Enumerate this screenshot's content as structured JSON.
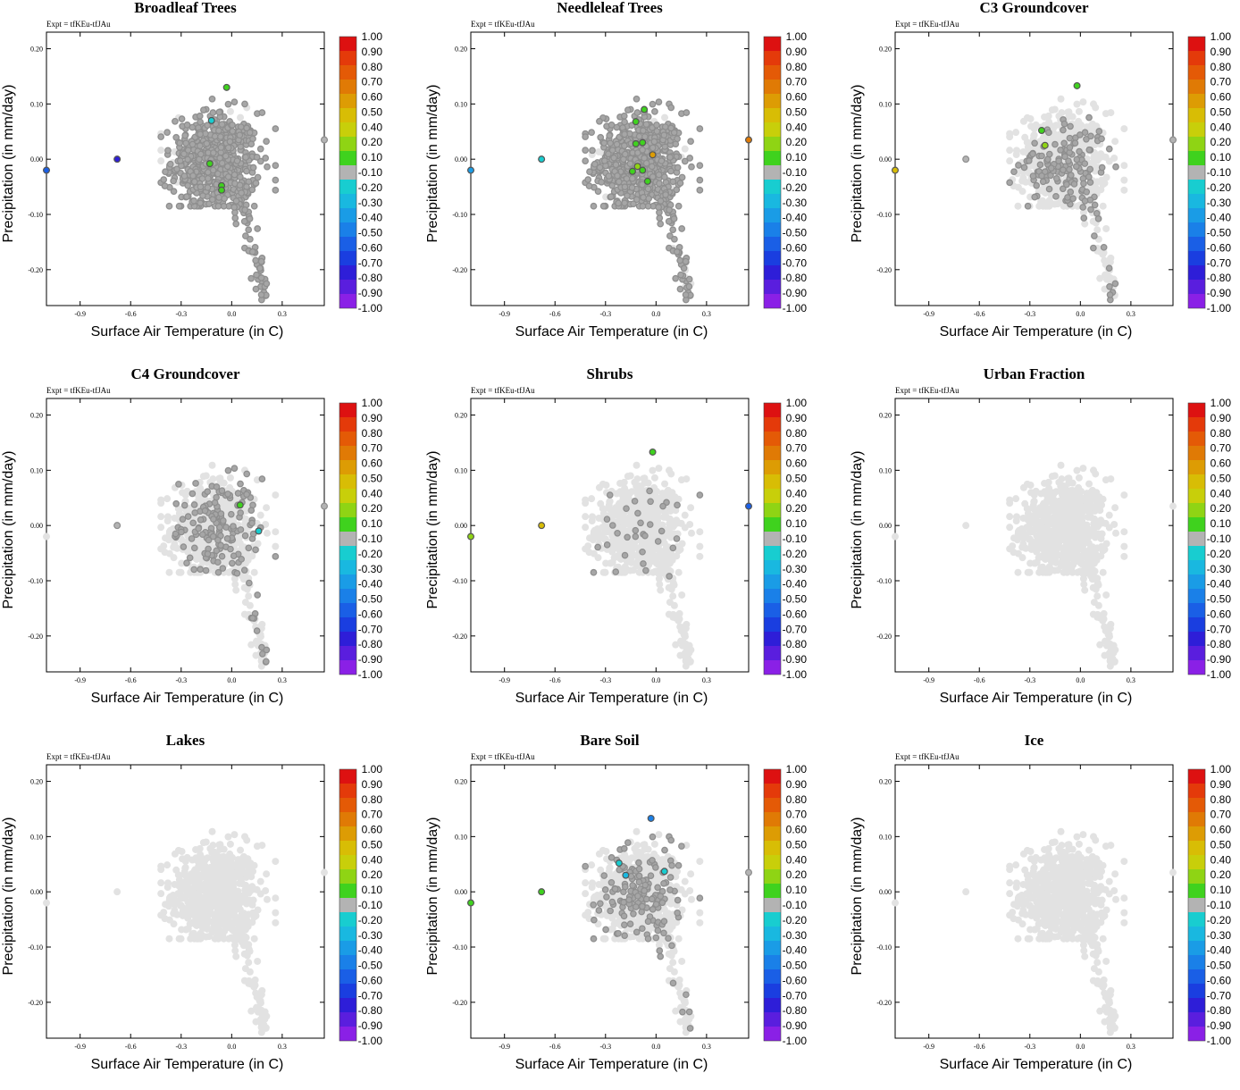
{
  "figure": {
    "xlabel": "Surface Air Temperature (in C)",
    "ylabel": "Precipitation (in mm/day)",
    "expt": "Expt = tfKEu-tfJAu",
    "colorbar": {
      "labels": [
        "1.00",
        "0.90",
        "0.80",
        "0.70",
        "0.60",
        "0.50",
        "0.40",
        "0.20",
        "0.10",
        "-0.10",
        "-0.20",
        "-0.30",
        "-0.40",
        "-0.50",
        "-0.60",
        "-0.70",
        "-0.80",
        "-0.90",
        "-1.00"
      ],
      "colors": [
        "#dd1111",
        "#e43a0a",
        "#e45a06",
        "#e07a05",
        "#dd9c04",
        "#d8bd05",
        "#c8cf0a",
        "#8fd414",
        "#3fd21e",
        "#b3b3b3",
        "#18cdd0",
        "#19b8e0",
        "#1a9ce6",
        "#1a80e8",
        "#1a5fe6",
        "#1a3ee0",
        "#2e1ed8",
        "#5a1ede",
        "#8a20e6"
      ]
    }
  },
  "chart_data": [
    {
      "type": "scatter",
      "title": "Broadleaf Trees",
      "xlim": [
        -1.1,
        0.55
      ],
      "ylim": [
        -0.265,
        0.23
      ],
      "xticks": [
        "-0.9",
        "-0.6",
        "-0.3",
        "0.0",
        "0.3"
      ],
      "yticks": [
        "0.20",
        "0.10",
        "0.00",
        "-0.10",
        "-0.20"
      ],
      "coverage": "dense",
      "highlights": [
        {
          "x": -0.68,
          "y": 0.0,
          "c": "#2e1ed8"
        },
        {
          "x": -1.1,
          "y": -0.02,
          "c": "#1a5fe6"
        },
        {
          "x": -0.03,
          "y": 0.13,
          "c": "#3fd21e"
        },
        {
          "x": -0.13,
          "y": -0.008,
          "c": "#3fd21e"
        },
        {
          "x": -0.06,
          "y": -0.048,
          "c": "#3fd21e"
        },
        {
          "x": -0.06,
          "y": -0.056,
          "c": "#3fd21e"
        },
        {
          "x": -0.12,
          "y": 0.07,
          "c": "#18cdd0"
        },
        {
          "x": 0.55,
          "y": 0.035,
          "c": "#b3b3b3"
        }
      ]
    },
    {
      "type": "scatter",
      "title": "Needleleaf Trees",
      "xlim": [
        -1.1,
        0.55
      ],
      "ylim": [
        -0.265,
        0.23
      ],
      "xticks": [
        "-0.9",
        "-0.6",
        "-0.3",
        "0.0",
        "0.3"
      ],
      "yticks": [
        "0.20",
        "0.10",
        "0.00",
        "-0.10",
        "-0.20"
      ],
      "coverage": "dense",
      "highlights": [
        {
          "x": -0.68,
          "y": 0.0,
          "c": "#18cdd0"
        },
        {
          "x": -1.1,
          "y": -0.02,
          "c": "#1a9ce6"
        },
        {
          "x": 0.55,
          "y": 0.035,
          "c": "#e07a05"
        },
        {
          "x": -0.07,
          "y": 0.09,
          "c": "#3fd21e"
        },
        {
          "x": -0.12,
          "y": 0.068,
          "c": "#3fd21e"
        },
        {
          "x": -0.12,
          "y": 0.028,
          "c": "#3fd21e"
        },
        {
          "x": -0.08,
          "y": 0.03,
          "c": "#3fd21e"
        },
        {
          "x": -0.02,
          "y": 0.008,
          "c": "#dd9c04"
        },
        {
          "x": -0.11,
          "y": -0.013,
          "c": "#8fd414"
        },
        {
          "x": -0.14,
          "y": -0.022,
          "c": "#3fd21e"
        },
        {
          "x": -0.05,
          "y": -0.04,
          "c": "#3fd21e"
        },
        {
          "x": -0.08,
          "y": -0.02,
          "c": "#3fd21e"
        }
      ]
    },
    {
      "type": "scatter",
      "title": "C3 Groundcover",
      "xlim": [
        -1.1,
        0.55
      ],
      "ylim": [
        -0.265,
        0.23
      ],
      "xticks": [
        "-0.9",
        "-0.6",
        "-0.3",
        "0.0",
        "0.3"
      ],
      "yticks": [
        "0.20",
        "0.10",
        "0.00",
        "-0.10",
        "-0.20"
      ],
      "coverage": "medium",
      "highlights": [
        {
          "x": -0.68,
          "y": 0.0,
          "c": "#b3b3b3"
        },
        {
          "x": -1.1,
          "y": -0.02,
          "c": "#d8bd05"
        },
        {
          "x": -0.02,
          "y": 0.133,
          "c": "#3fd21e"
        },
        {
          "x": -0.23,
          "y": 0.052,
          "c": "#3fd21e"
        },
        {
          "x": -0.21,
          "y": 0.025,
          "c": "#8fd414"
        },
        {
          "x": 0.55,
          "y": 0.035,
          "c": "#b3b3b3"
        }
      ]
    },
    {
      "type": "scatter",
      "title": "C4 Groundcover",
      "xlim": [
        -1.1,
        0.55
      ],
      "ylim": [
        -0.265,
        0.23
      ],
      "xticks": [
        "-0.9",
        "-0.6",
        "-0.3",
        "0.0",
        "0.3"
      ],
      "yticks": [
        "0.20",
        "0.10",
        "0.00",
        "-0.10",
        "-0.20"
      ],
      "coverage": "medium",
      "highlights": [
        {
          "x": -0.68,
          "y": 0.0,
          "c": "#b3b3b3"
        },
        {
          "x": 0.05,
          "y": 0.037,
          "c": "#3fd21e"
        },
        {
          "x": 0.16,
          "y": -0.01,
          "c": "#18cdd0"
        },
        {
          "x": 0.55,
          "y": 0.035,
          "c": "#b3b3b3"
        }
      ]
    },
    {
      "type": "scatter",
      "title": "Shrubs",
      "xlim": [
        -1.1,
        0.55
      ],
      "ylim": [
        -0.265,
        0.23
      ],
      "xticks": [
        "-0.9",
        "-0.6",
        "-0.3",
        "0.0",
        "0.3"
      ],
      "yticks": [
        "0.20",
        "0.10",
        "0.00",
        "-0.10",
        "-0.20"
      ],
      "coverage": "sparse",
      "highlights": [
        {
          "x": -0.68,
          "y": 0.0,
          "c": "#d8bd05"
        },
        {
          "x": -1.1,
          "y": -0.02,
          "c": "#8fd414"
        },
        {
          "x": -0.02,
          "y": 0.133,
          "c": "#3fd21e"
        },
        {
          "x": 0.55,
          "y": 0.035,
          "c": "#1a5fe6"
        }
      ]
    },
    {
      "type": "scatter",
      "title": "Urban Fraction",
      "xlim": [
        -1.1,
        0.55
      ],
      "ylim": [
        -0.265,
        0.23
      ],
      "xticks": [
        "-0.9",
        "-0.6",
        "-0.3",
        "0.0",
        "0.3"
      ],
      "yticks": [
        "0.20",
        "0.10",
        "0.00",
        "-0.10",
        "-0.20"
      ],
      "coverage": "none",
      "highlights": []
    },
    {
      "type": "scatter",
      "title": "Lakes",
      "xlim": [
        -1.1,
        0.55
      ],
      "ylim": [
        -0.265,
        0.23
      ],
      "xticks": [
        "-0.9",
        "-0.6",
        "-0.3",
        "0.0",
        "0.3"
      ],
      "yticks": [
        "0.20",
        "0.10",
        "0.00",
        "-0.10",
        "-0.20"
      ],
      "coverage": "none",
      "highlights": []
    },
    {
      "type": "scatter",
      "title": "Bare Soil",
      "xlim": [
        -1.1,
        0.55
      ],
      "ylim": [
        -0.265,
        0.23
      ],
      "xticks": [
        "-0.9",
        "-0.6",
        "-0.3",
        "0.0",
        "0.3"
      ],
      "yticks": [
        "0.20",
        "0.10",
        "0.00",
        "-0.10",
        "-0.20"
      ],
      "coverage": "medium",
      "highlights": [
        {
          "x": -0.68,
          "y": 0.0,
          "c": "#3fd21e"
        },
        {
          "x": -1.1,
          "y": -0.02,
          "c": "#3fd21e"
        },
        {
          "x": -0.03,
          "y": 0.133,
          "c": "#1a80e8"
        },
        {
          "x": -0.22,
          "y": 0.052,
          "c": "#18cdd0"
        },
        {
          "x": 0.05,
          "y": 0.037,
          "c": "#18cdd0"
        },
        {
          "x": -0.18,
          "y": 0.03,
          "c": "#19b8e0"
        },
        {
          "x": 0.55,
          "y": 0.035,
          "c": "#b3b3b3"
        }
      ]
    },
    {
      "type": "scatter",
      "title": "Ice",
      "xlim": [
        -1.1,
        0.55
      ],
      "ylim": [
        -0.265,
        0.23
      ],
      "xticks": [
        "-0.9",
        "-0.6",
        "-0.3",
        "0.0",
        "0.3"
      ],
      "yticks": [
        "0.20",
        "0.10",
        "0.00",
        "-0.10",
        "-0.20"
      ],
      "coverage": "none",
      "highlights": []
    }
  ]
}
